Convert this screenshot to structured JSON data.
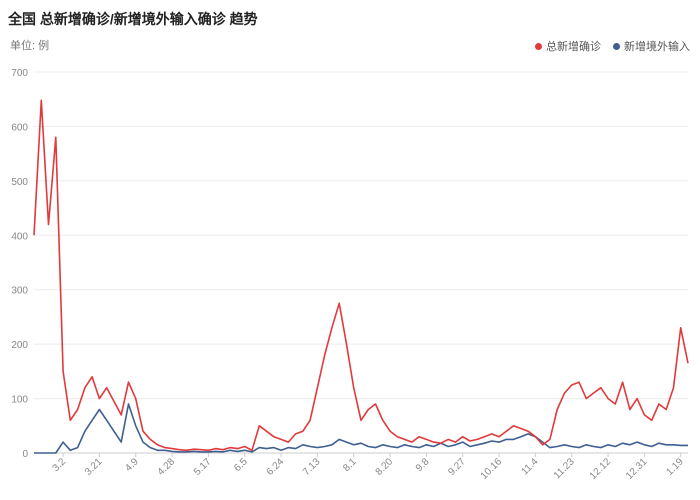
{
  "title": "全国 总新增确诊/新增境外输入确诊 趋势",
  "unit_label": "单位: 例",
  "chart_data": {
    "type": "line",
    "title": "全国 总新增确诊/新增境外输入确诊 趋势",
    "ylim": [
      0,
      700
    ],
    "yticks": [
      0,
      100,
      200,
      300,
      400,
      500,
      600,
      700
    ],
    "grid": true,
    "legend_position": "top-right",
    "x": [
      "2.14",
      "2.18",
      "2.22",
      "2.26",
      "3.2",
      "3.6",
      "3.10",
      "3.14",
      "3.18",
      "3.21",
      "3.24",
      "3.28",
      "4.1",
      "4.5",
      "4.9",
      "4.13",
      "4.17",
      "4.21",
      "4.25",
      "4.28",
      "5.2",
      "5.6",
      "5.10",
      "5.13",
      "5.17",
      "5.21",
      "5.25",
      "5.29",
      "6.1",
      "6.5",
      "6.9",
      "6.13",
      "6.17",
      "6.21",
      "6.24",
      "6.28",
      "7.2",
      "7.6",
      "7.10",
      "7.13",
      "7.17",
      "7.21",
      "7.25",
      "7.28",
      "8.1",
      "8.5",
      "8.9",
      "8.13",
      "8.16",
      "8.20",
      "8.24",
      "8.28",
      "9.1",
      "9.5",
      "9.8",
      "9.12",
      "9.16",
      "9.20",
      "9.24",
      "9.27",
      "10.1",
      "10.5",
      "10.9",
      "10.12",
      "10.16",
      "10.20",
      "10.24",
      "10.27",
      "10.31",
      "11.4",
      "11.8",
      "11.12",
      "11.16",
      "11.20",
      "11.23",
      "11.27",
      "12.1",
      "12.5",
      "12.8",
      "12.12",
      "12.16",
      "12.20",
      "12.24",
      "12.27",
      "12.31",
      "1.4",
      "1.8",
      "1.12",
      "1.15",
      "1.19",
      "1.21"
    ],
    "xticks": [
      "3.2",
      "3.21",
      "4.9",
      "4.28",
      "5.17",
      "6.5",
      "6.24",
      "7.13",
      "8.1",
      "8.20",
      "9.8",
      "9.27",
      "10.16",
      "11.4",
      "11.23",
      "12.12",
      "12.31",
      "1.19"
    ],
    "series": [
      {
        "name": "总新增确诊",
        "color": "#e03a3a",
        "values": [
          400,
          648,
          420,
          580,
          150,
          60,
          80,
          120,
          140,
          100,
          120,
          95,
          70,
          130,
          100,
          40,
          25,
          15,
          10,
          8,
          6,
          5,
          7,
          6,
          5,
          8,
          6,
          10,
          8,
          12,
          5,
          50,
          40,
          30,
          25,
          20,
          35,
          40,
          60,
          120,
          180,
          230,
          275,
          200,
          120,
          60,
          80,
          90,
          60,
          40,
          30,
          25,
          20,
          30,
          25,
          20,
          18,
          25,
          20,
          30,
          22,
          25,
          30,
          35,
          30,
          40,
          50,
          45,
          40,
          30,
          15,
          25,
          80,
          110,
          125,
          130,
          100,
          110,
          120,
          100,
          90,
          130,
          80,
          100,
          70,
          60,
          90,
          80,
          120,
          230,
          165
        ]
      },
      {
        "name": "新增境外输入",
        "color": "#3d5f91",
        "values": [
          0,
          0,
          0,
          0,
          20,
          5,
          10,
          40,
          60,
          80,
          60,
          40,
          20,
          90,
          50,
          20,
          10,
          5,
          5,
          3,
          2,
          2,
          3,
          2,
          2,
          3,
          2,
          5,
          3,
          5,
          2,
          10,
          8,
          10,
          5,
          10,
          8,
          15,
          12,
          10,
          12,
          15,
          25,
          20,
          15,
          18,
          12,
          10,
          15,
          12,
          10,
          15,
          12,
          10,
          15,
          12,
          18,
          12,
          15,
          20,
          12,
          15,
          18,
          22,
          20,
          25,
          25,
          30,
          35,
          30,
          20,
          10,
          12,
          15,
          12,
          10,
          15,
          12,
          10,
          15,
          12,
          18,
          15,
          20,
          15,
          12,
          18,
          15,
          15,
          14,
          14
        ]
      }
    ]
  }
}
